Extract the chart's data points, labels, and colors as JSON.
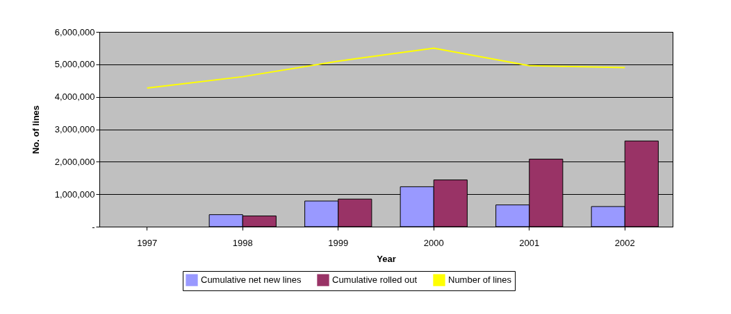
{
  "chart_data": {
    "type": "bar",
    "xlabel": "Year",
    "ylabel": "No. of lines",
    "categories": [
      "1997",
      "1998",
      "1999",
      "2000",
      "2001",
      "2002"
    ],
    "series": [
      {
        "name": "Cumulative net new lines",
        "color": "#9999ff",
        "values": [
          null,
          370000,
          790000,
          1230000,
          670000,
          620000
        ]
      },
      {
        "name": "Cumulative rolled out",
        "color": "#993366",
        "values": [
          null,
          330000,
          850000,
          1440000,
          2080000,
          2640000
        ]
      },
      {
        "name": "Number of lines",
        "type": "line",
        "color": "#ffff00",
        "values": [
          4270000,
          4620000,
          5100000,
          5500000,
          4960000,
          4900000
        ]
      }
    ],
    "ylim": [
      0,
      6000000
    ],
    "yticks": [
      {
        "value": 0,
        "label": "-"
      },
      {
        "value": 1000000,
        "label": "1,000,000"
      },
      {
        "value": 2000000,
        "label": "2,000,000"
      },
      {
        "value": 3000000,
        "label": "3,000,000"
      },
      {
        "value": 4000000,
        "label": "4,000,000"
      },
      {
        "value": 5000000,
        "label": "5,000,000"
      },
      {
        "value": 6000000,
        "label": "6,000,000"
      }
    ],
    "grid": "y",
    "legend": "bottom"
  }
}
